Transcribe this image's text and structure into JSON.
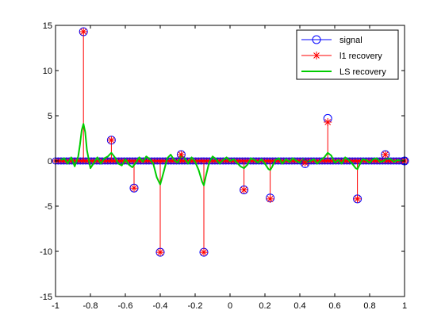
{
  "chart_data": {
    "type": "line",
    "title": "",
    "xlabel": "",
    "ylabel": "",
    "xlim": [
      -1,
      1
    ],
    "ylim": [
      -15,
      15
    ],
    "x_ticks": [
      -1,
      -0.8,
      -0.6,
      -0.4,
      -0.2,
      0,
      0.2,
      0.4,
      0.6,
      0.8,
      1
    ],
    "x_tick_labels": [
      "-1",
      "-0.8",
      "-0.6",
      "-0.4",
      "-0.2",
      "0",
      "0.2",
      "0.4",
      "0.6",
      "0.8",
      "1"
    ],
    "y_ticks": [
      -15,
      -10,
      -5,
      0,
      5,
      10,
      15
    ],
    "y_tick_labels": [
      "-15",
      "-10",
      "-5",
      "0",
      "5",
      "10",
      "15"
    ],
    "grid": false,
    "legend_position": "top-right",
    "legend": [
      {
        "name": "signal",
        "marker": "circle",
        "color": "#0000ff"
      },
      {
        "name": "l1 recovery",
        "marker": "star",
        "color": "#ff0000"
      },
      {
        "name": "LS recovery",
        "marker": "line",
        "color": "#00cc00"
      }
    ],
    "n_samples": 128,
    "spikes": [
      {
        "x": -0.84,
        "signal": 14.3,
        "l1": 14.3
      },
      {
        "x": -0.68,
        "signal": 2.3,
        "l1": 2.3
      },
      {
        "x": -0.55,
        "signal": -3.0,
        "l1": -3.0
      },
      {
        "x": -0.4,
        "signal": -10.1,
        "l1": -10.1
      },
      {
        "x": -0.28,
        "signal": 0.7,
        "l1": 0.7
      },
      {
        "x": -0.15,
        "signal": -10.1,
        "l1": -10.1
      },
      {
        "x": 0.08,
        "signal": -3.2,
        "l1": -3.2
      },
      {
        "x": 0.23,
        "signal": -4.1,
        "l1": -4.2
      },
      {
        "x": 0.43,
        "signal": -0.3,
        "l1": -0.2
      },
      {
        "x": 0.56,
        "signal": 4.7,
        "l1": 4.3
      },
      {
        "x": 0.73,
        "signal": -4.2,
        "l1": -4.2
      },
      {
        "x": 0.89,
        "signal": 0.7,
        "l1": 0.7
      },
      {
        "x": 1.0,
        "signal": 0.0,
        "l1": 0.0
      }
    ],
    "ls_recovery": {
      "x": [
        -0.97,
        -0.95,
        -0.93,
        -0.91,
        -0.89,
        -0.87,
        -0.86,
        -0.85,
        -0.84,
        -0.83,
        -0.82,
        -0.8,
        -0.78,
        -0.76,
        -0.74,
        -0.72,
        -0.7,
        -0.68,
        -0.66,
        -0.64,
        -0.62,
        -0.6,
        -0.58,
        -0.56,
        -0.54,
        -0.52,
        -0.5,
        -0.48,
        -0.46,
        -0.44,
        -0.42,
        -0.4,
        -0.38,
        -0.36,
        -0.34,
        -0.32,
        -0.3,
        -0.28,
        -0.26,
        -0.24,
        -0.22,
        -0.2,
        -0.18,
        -0.16,
        -0.15,
        -0.14,
        -0.12,
        -0.1,
        -0.08,
        -0.06,
        -0.04,
        -0.02,
        0.0,
        0.02,
        0.04,
        0.06,
        0.08,
        0.1,
        0.12,
        0.14,
        0.16,
        0.18,
        0.2,
        0.22,
        0.23,
        0.24,
        0.26,
        0.28,
        0.3,
        0.32,
        0.34,
        0.36,
        0.38,
        0.4,
        0.42,
        0.44,
        0.46,
        0.48,
        0.5,
        0.52,
        0.54,
        0.56,
        0.58,
        0.6,
        0.62,
        0.64,
        0.66,
        0.68,
        0.7,
        0.72,
        0.73,
        0.74,
        0.76,
        0.78,
        0.8,
        0.82,
        0.84,
        0.86,
        0.88,
        0.9,
        0.92,
        0.94,
        0.96,
        0.98,
        1.0
      ],
      "y": [
        0.1,
        0.3,
        -0.3,
        0.4,
        -0.6,
        0.5,
        1.8,
        3.4,
        4.1,
        3.2,
        1.2,
        -0.8,
        -0.2,
        0.4,
        -0.3,
        0.3,
        0.5,
        0.9,
        0.4,
        -0.3,
        -0.5,
        0.2,
        -0.4,
        -0.7,
        -0.2,
        0.4,
        -0.1,
        0.5,
        0.2,
        -0.3,
        -1.8,
        -2.6,
        -1.2,
        0.3,
        0.7,
        0.1,
        -0.2,
        0.6,
        0.3,
        -0.3,
        0.4,
        -0.1,
        -1.0,
        -2.3,
        -2.7,
        -1.8,
        -0.2,
        0.5,
        0.2,
        -0.3,
        0.1,
        0.4,
        0.0,
        0.2,
        -0.2,
        -0.6,
        -0.8,
        -0.4,
        0.3,
        0.1,
        -0.2,
        0.2,
        -0.3,
        -0.9,
        -1.0,
        -0.7,
        0.1,
        0.3,
        -0.3,
        0.2,
        -0.1,
        0.3,
        0.0,
        -0.2,
        0.2,
        -0.1,
        0.0,
        0.2,
        -0.3,
        0.1,
        0.4,
        0.9,
        0.6,
        -0.2,
        0.1,
        -0.3,
        0.4,
        0.1,
        -0.3,
        -0.8,
        -0.9,
        -0.5,
        0.2,
        0.1,
        -0.2,
        0.2,
        0.3,
        -0.1,
        0.0,
        0.3,
        0.2,
        -0.1,
        0.1,
        0.0,
        0.1
      ]
    }
  }
}
